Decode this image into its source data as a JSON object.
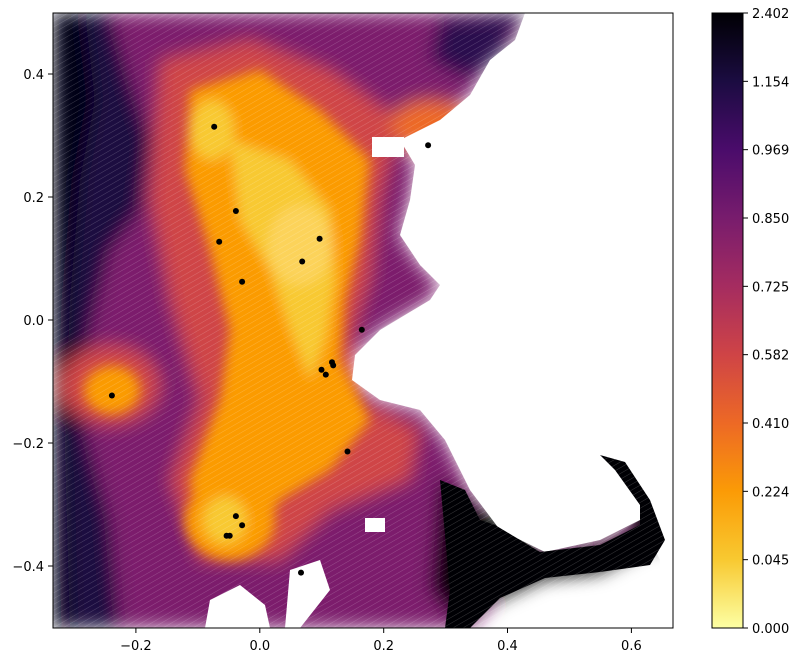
{
  "chart_data": {
    "type": "heatmap",
    "title": "",
    "xlabel": "",
    "ylabel": "",
    "xlim": [
      -0.33,
      0.67
    ],
    "ylim": [
      -0.5,
      0.5
    ],
    "x_ticks": [
      -0.2,
      0.0,
      0.2,
      0.4,
      0.6
    ],
    "x_tick_labels": [
      "−0.2",
      "0.0",
      "0.2",
      "0.4",
      "0.6"
    ],
    "y_ticks": [
      -0.4,
      -0.2,
      0.0,
      0.2,
      0.4
    ],
    "y_tick_labels": [
      "−0.4",
      "−0.2",
      "0.0",
      "0.2",
      "0.4"
    ],
    "grid": false,
    "colormap": "inferno_r",
    "colorbar": {
      "tick_labels": [
        "0.000",
        "0.045",
        "0.224",
        "0.410",
        "0.582",
        "0.725",
        "0.850",
        "0.969",
        "1.154",
        "2.402"
      ],
      "colors": [
        "#fcffa4",
        "#f8c931",
        "#fb9b06",
        "#ed6925",
        "#cf4446",
        "#a52c60",
        "#781c6d",
        "#4a0c6b",
        "#1b0c41",
        "#000004"
      ]
    },
    "points": [
      {
        "x": -0.07,
        "y": 0.315
      },
      {
        "x": 0.275,
        "y": 0.285
      },
      {
        "x": -0.035,
        "y": 0.178
      },
      {
        "x": 0.1,
        "y": 0.133
      },
      {
        "x": -0.062,
        "y": 0.128
      },
      {
        "x": 0.072,
        "y": 0.096
      },
      {
        "x": -0.025,
        "y": 0.063
      },
      {
        "x": 0.168,
        "y": -0.015
      },
      {
        "x": 0.12,
        "y": -0.068
      },
      {
        "x": 0.122,
        "y": -0.073
      },
      {
        "x": 0.103,
        "y": -0.08
      },
      {
        "x": 0.11,
        "y": -0.088
      },
      {
        "x": -0.235,
        "y": -0.122
      },
      {
        "x": 0.145,
        "y": -0.213
      },
      {
        "x": -0.035,
        "y": -0.318
      },
      {
        "x": -0.025,
        "y": -0.333
      },
      {
        "x": -0.05,
        "y": -0.35
      },
      {
        "x": -0.045,
        "y": -0.35
      },
      {
        "x": 0.07,
        "y": -0.41
      }
    ]
  }
}
